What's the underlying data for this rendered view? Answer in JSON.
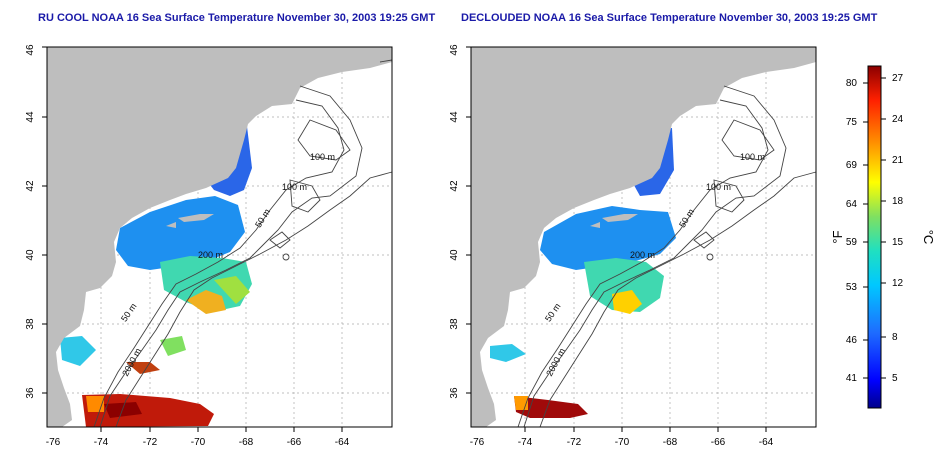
{
  "maps": [
    {
      "title": "RU COOL NOAA 16 Sea Surface Temperature November 30, 2003 19:25 GMT",
      "lon_range": [
        -77.2,
        -62.8
      ],
      "lat_range": [
        35,
        46
      ],
      "lon_ticks": [
        "-76",
        "-74",
        "-72",
        "-70",
        "-68",
        "-66",
        "-64"
      ],
      "lat_ticks": [
        "36",
        "38",
        "40",
        "42",
        "44",
        "46"
      ],
      "contour_labels": [
        "100 m",
        "100 m",
        "50 m",
        "200 m",
        "50 m",
        "2000 m"
      ]
    },
    {
      "title": "DECLOUDED NOAA 16 Sea Surface Temperature November 30, 2003 19:25 GMT",
      "lon_range": [
        -77.2,
        -62.8
      ],
      "lat_range": [
        35,
        46
      ],
      "lon_ticks": [
        "-76",
        "-74",
        "-72",
        "-70",
        "-68",
        "-66",
        "-64"
      ],
      "lat_ticks": [
        "36",
        "38",
        "40",
        "42",
        "44",
        "46"
      ],
      "contour_labels": [
        "100 m",
        "100 m",
        "50 m",
        "200 m",
        "50 m",
        "2000 m"
      ]
    }
  ],
  "colorbar": {
    "fahrenheit_label": "°F",
    "celsius_label": "°C",
    "fahrenheit_ticks": [
      "80",
      "75",
      "69",
      "64",
      "59",
      "53",
      "46",
      "41"
    ],
    "celsius_ticks": [
      "27",
      "24",
      "21",
      "18",
      "15",
      "12",
      "8",
      "5"
    ],
    "colors": [
      "#00008b",
      "#0000ff",
      "#1e6cff",
      "#00c8ff",
      "#20e0c0",
      "#80e060",
      "#ffff00",
      "#ff8c00",
      "#ff2000",
      "#8b0000"
    ]
  },
  "colors": {
    "land": "#bebebe",
    "contour": "#444444",
    "grid": "#aaaaaa",
    "title": "#1a1aa8"
  }
}
